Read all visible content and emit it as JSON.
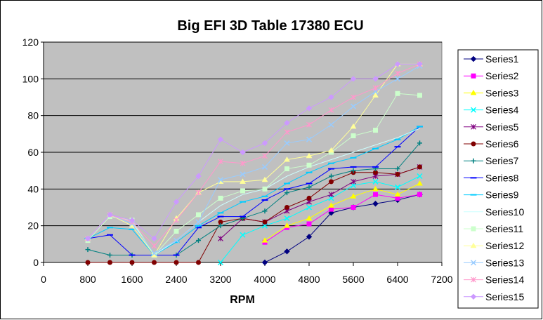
{
  "chart_data": {
    "type": "line",
    "title": "Big EFI 3D Table 17380 ECU",
    "xlabel": "RPM",
    "ylabel": "",
    "xlim": [
      0,
      7200
    ],
    "ylim": [
      0,
      120
    ],
    "xticks": [
      0,
      800,
      1600,
      2400,
      3200,
      4000,
      4800,
      5600,
      6400,
      7200
    ],
    "yticks": [
      0,
      20,
      40,
      60,
      80,
      100,
      120
    ],
    "grid": "horizontal",
    "legend": "right",
    "x": [
      800,
      1200,
      1600,
      2000,
      2400,
      2800,
      3200,
      3600,
      4000,
      4400,
      4800,
      5200,
      5600,
      6000,
      6400,
      6800
    ],
    "series": [
      {
        "name": "Series1",
        "color": "#000080",
        "marker": "diamond",
        "values": [
          null,
          null,
          null,
          null,
          null,
          null,
          null,
          null,
          0,
          6,
          14,
          27,
          30,
          32,
          34,
          37
        ]
      },
      {
        "name": "Series2",
        "color": "#ff00ff",
        "marker": "square",
        "values": [
          null,
          null,
          null,
          null,
          null,
          null,
          null,
          null,
          11,
          19,
          21,
          29,
          30,
          37,
          35,
          37
        ]
      },
      {
        "name": "Series3",
        "color": "#ffff00",
        "marker": "triangle",
        "values": [
          null,
          null,
          null,
          null,
          null,
          null,
          null,
          null,
          12,
          20,
          24,
          31,
          36,
          40,
          37,
          43
        ]
      },
      {
        "name": "Series4",
        "color": "#00ffff",
        "marker": "x",
        "values": [
          null,
          null,
          null,
          null,
          null,
          null,
          0,
          15,
          20,
          24,
          30,
          35,
          42,
          44,
          41,
          47
        ]
      },
      {
        "name": "Series5",
        "color": "#800080",
        "marker": "star",
        "values": [
          null,
          null,
          null,
          null,
          null,
          null,
          13,
          24,
          22,
          28,
          33,
          37,
          44,
          47,
          48,
          52
        ]
      },
      {
        "name": "Series6",
        "color": "#800000",
        "marker": "circle",
        "values": [
          0,
          0,
          0,
          0,
          0,
          0,
          22,
          24,
          22,
          30,
          35,
          44,
          49,
          49,
          48,
          52
        ]
      },
      {
        "name": "Series7",
        "color": "#008080",
        "marker": "plus",
        "values": [
          7,
          4,
          4,
          4,
          4,
          12,
          20,
          24,
          28,
          38,
          41,
          47,
          50,
          51,
          51,
          65
        ]
      },
      {
        "name": "Series8",
        "color": "#0000ff",
        "marker": "dash",
        "values": [
          13,
          15,
          4,
          4,
          4,
          19,
          25,
          25,
          34,
          40,
          43,
          51,
          52,
          52,
          63,
          74
        ]
      },
      {
        "name": "Series9",
        "color": "#00ccff",
        "marker": "dash",
        "values": [
          13,
          19,
          18,
          4,
          11,
          20,
          27,
          33,
          36,
          43,
          49,
          54,
          57,
          62,
          67,
          74
        ]
      },
      {
        "name": "Series10",
        "color": "#ccffff",
        "marker": "none",
        "values": [
          13,
          26,
          22,
          4,
          12,
          22,
          31,
          37,
          40,
          47,
          52,
          56,
          60,
          64,
          68,
          73
        ]
      },
      {
        "name": "Series11",
        "color": "#ccffcc",
        "marker": "square",
        "values": [
          12,
          25,
          23,
          4,
          17,
          26,
          35,
          39,
          40,
          51,
          53,
          60,
          69,
          72,
          92,
          91
        ]
      },
      {
        "name": "Series12",
        "color": "#ffff99",
        "marker": "triangle",
        "values": [
          13,
          26,
          20,
          4,
          24,
          38,
          44,
          44,
          45,
          56,
          58,
          61,
          74,
          91,
          108,
          108
        ]
      },
      {
        "name": "Series13",
        "color": "#99ccff",
        "marker": "x",
        "values": [
          13,
          26,
          21,
          5,
          12,
          22,
          45,
          48,
          52,
          65,
          67,
          75,
          85,
          93,
          100,
          107
        ]
      },
      {
        "name": "Series14",
        "color": "#ff99cc",
        "marker": "star",
        "values": [
          13,
          26,
          22,
          9,
          23,
          38,
          55,
          54,
          58,
          71,
          75,
          83,
          90,
          95,
          103,
          108
        ]
      },
      {
        "name": "Series15",
        "color": "#cc99ff",
        "marker": "diamond",
        "values": [
          13,
          26,
          23,
          13,
          33,
          47,
          67,
          60,
          65,
          76,
          84,
          90,
          100,
          100,
          108,
          108
        ]
      }
    ]
  }
}
